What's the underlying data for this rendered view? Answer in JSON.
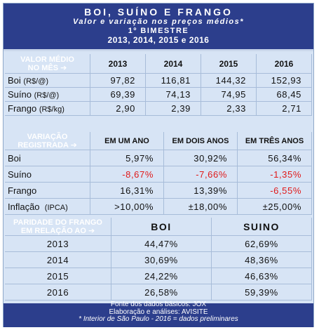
{
  "header": {
    "title": "BOI, SUÍNO E FRANGO",
    "subtitle": "Valor e variação nos preços médios*",
    "period": "1º BIMESTRE",
    "years": "2013, 2014, 2015 e 2016"
  },
  "section1": {
    "label_line1": "VALOR MÉDIO",
    "label_line2": "NO MÊS ➔",
    "columns": [
      "2013",
      "2014",
      "2015",
      "2016"
    ],
    "rows": [
      {
        "name": "Boi",
        "unit": "(R$/@)",
        "values": [
          "97,82",
          "116,81",
          "144,32",
          "152,93"
        ]
      },
      {
        "name": "Suíno",
        "unit": "(R$/@)",
        "values": [
          "69,39",
          "74,13",
          "74,95",
          "68,45"
        ]
      },
      {
        "name": "Frango",
        "unit": "(R$/kg)",
        "values": [
          "2,90",
          "2,39",
          "2,33",
          "2,71"
        ]
      }
    ]
  },
  "section2": {
    "label_line1": "VARIAÇÃO",
    "label_line2": "REGISTRADA ➔",
    "columns": [
      "EM UM ANO",
      "EM DOIS ANOS",
      "EM TRÊS ANOS"
    ],
    "rows": [
      {
        "name": "Boi",
        "unit": "",
        "values": [
          "5,97%",
          "30,92%",
          "56,34%"
        ]
      },
      {
        "name": "Suíno",
        "unit": "",
        "values": [
          "-8,67%",
          "-7,66%",
          "-1,35%"
        ]
      },
      {
        "name": "Frango",
        "unit": "",
        "values": [
          "16,31%",
          "13,39%",
          "-6,55%"
        ]
      },
      {
        "name": "Inflação",
        "unit": "(IPCA)",
        "values": [
          ">10,00%",
          "±18,00%",
          "±25,00%"
        ]
      }
    ],
    "negative_color": "#e01a1a"
  },
  "section3": {
    "label_line1": "PARIDADE DO FRANGO",
    "label_line2": "EM RELAÇÃO AO ➔",
    "columns": [
      "BOI",
      "SUINO"
    ],
    "rows": [
      {
        "year": "2013",
        "values": [
          "44,47%",
          "62,69%"
        ]
      },
      {
        "year": "2014",
        "values": [
          "30,69%",
          "48,36%"
        ]
      },
      {
        "year": "2015",
        "values": [
          "24,22%",
          "46,63%"
        ]
      },
      {
        "year": "2016",
        "values": [
          "26,58%",
          "59,39%"
        ]
      }
    ]
  },
  "footer": {
    "line1": "Fonte dos dados básicos: JOX",
    "line2": "Elaboração e análises: AVISITE",
    "line3": "* Interior de São Paulo  -  2016 = dados preliminares"
  },
  "colors": {
    "header_bg": "#2c3e8c",
    "panel_bg": "#d7e4f5",
    "grid": "#a7bcd9"
  }
}
